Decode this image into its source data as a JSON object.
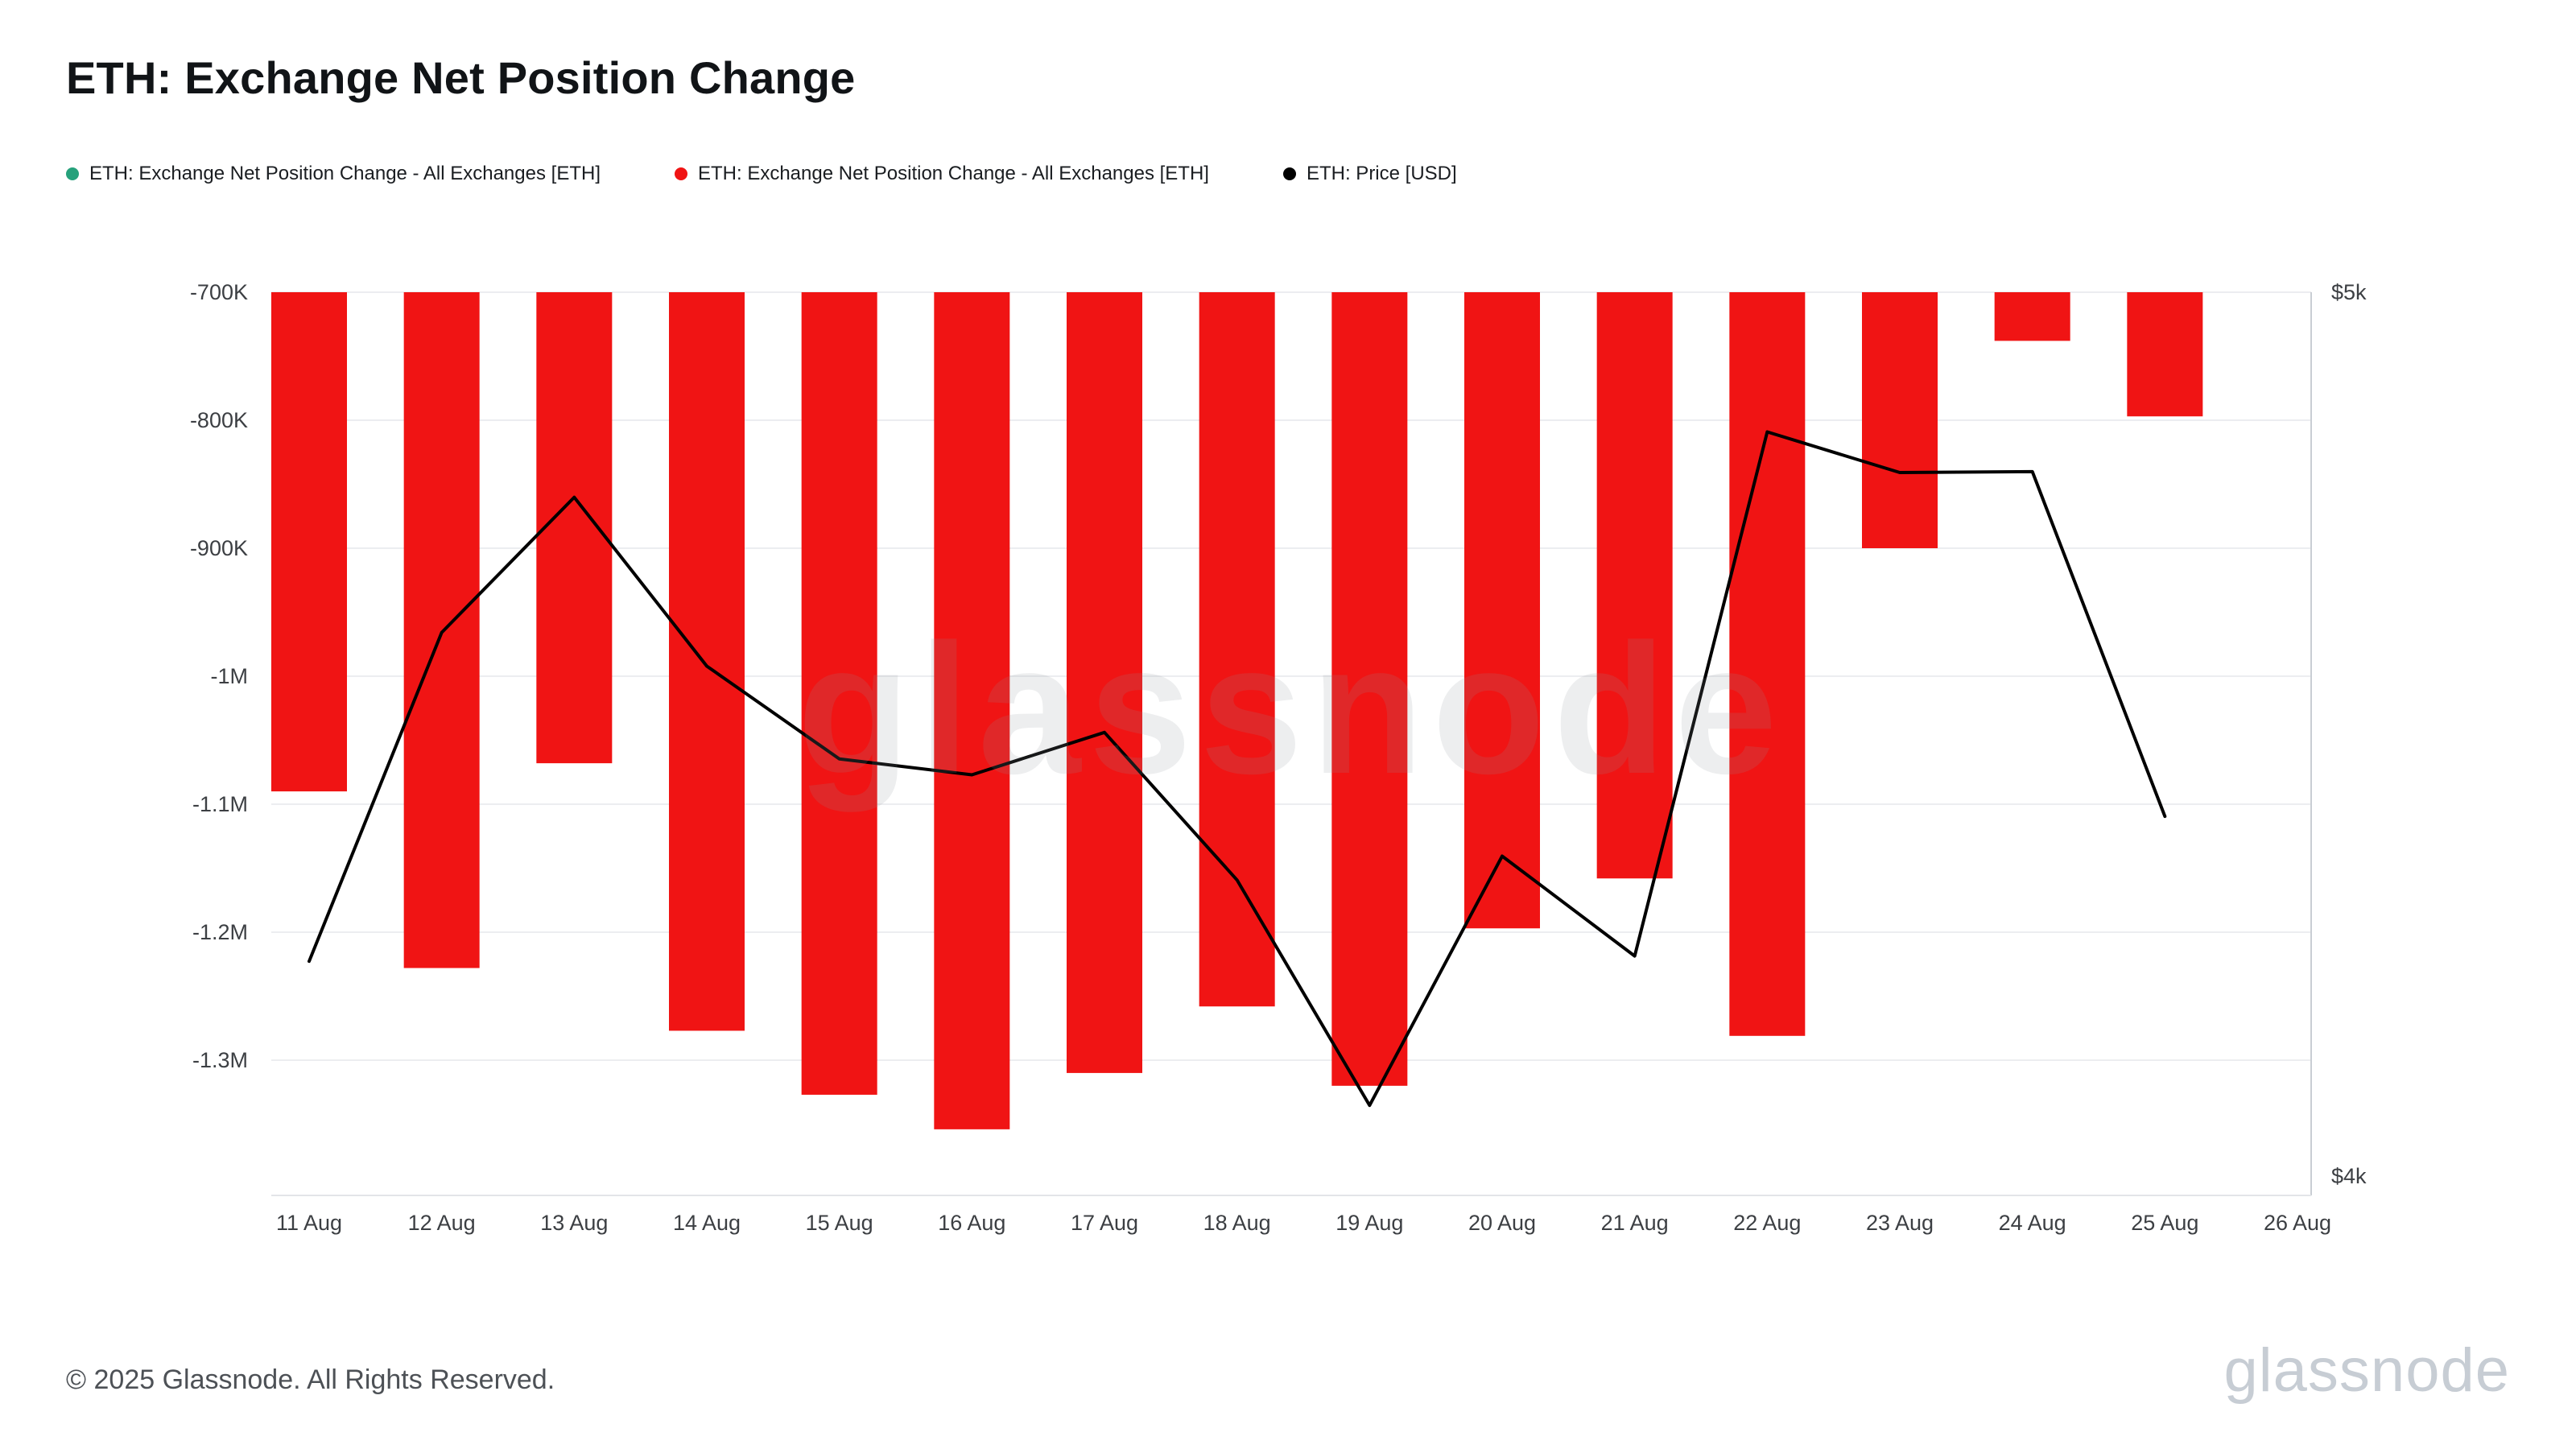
{
  "title": "ETH: Exchange Net Position Change",
  "legend": {
    "items": [
      {
        "label": "ETH: Exchange Net Position Change - All Exchanges [ETH]",
        "color": "#26a17b"
      },
      {
        "label": "ETH: Exchange Net Position Change - All Exchanges [ETH]",
        "color": "#f01414"
      },
      {
        "label": "ETH: Price [USD]",
        "color": "#000000"
      }
    ]
  },
  "watermark": "glassnode",
  "footer": {
    "copyright": "© 2025 Glassnode. All Rights Reserved.",
    "logo": "glassnode"
  },
  "chart_data": {
    "type": "bar",
    "title": "ETH: Exchange Net Position Change",
    "categories": [
      "11 Aug",
      "12 Aug",
      "13 Aug",
      "14 Aug",
      "15 Aug",
      "16 Aug",
      "17 Aug",
      "18 Aug",
      "19 Aug",
      "20 Aug",
      "21 Aug",
      "22 Aug",
      "23 Aug",
      "24 Aug",
      "25 Aug"
    ],
    "x_axis_ticks": [
      "11 Aug",
      "12 Aug",
      "13 Aug",
      "14 Aug",
      "15 Aug",
      "16 Aug",
      "17 Aug",
      "18 Aug",
      "19 Aug",
      "20 Aug",
      "21 Aug",
      "22 Aug",
      "23 Aug",
      "24 Aug",
      "25 Aug",
      "26 Aug"
    ],
    "series": [
      {
        "name": "ETH: Exchange Net Position Change - All Exchanges [ETH]",
        "type": "bar",
        "axis": "left",
        "color": "#f01414",
        "values": [
          -1090000,
          -1228000,
          -1068000,
          -1277000,
          -1327000,
          -1354000,
          -1310000,
          -1258000,
          -1320000,
          -1197000,
          -1158000,
          -1281000,
          -900000,
          -738000,
          -797000
        ]
      },
      {
        "name": "ETH: Price [USD]",
        "type": "line",
        "axis": "right",
        "color": "#000000",
        "values": [
          4243,
          4615,
          4768,
          4577,
          4472,
          4454,
          4502,
          4335,
          4080,
          4362,
          4249,
          4842,
          4796,
          4797,
          4407
        ]
      }
    ],
    "left_axis": {
      "ticks": [
        {
          "label": "-700K",
          "value": -700000
        },
        {
          "label": "-800K",
          "value": -800000
        },
        {
          "label": "-900K",
          "value": -900000
        },
        {
          "label": "-1M",
          "value": -1000000
        },
        {
          "label": "-1.1M",
          "value": -1100000
        },
        {
          "label": "-1.2M",
          "value": -1200000
        },
        {
          "label": "-1.3M",
          "value": -1300000
        }
      ],
      "range": [
        -700000,
        -1400000
      ]
    },
    "right_axis": {
      "ticks": [
        {
          "label": "$5k",
          "value": 5000
        },
        {
          "label": "$4k",
          "value": 4000
        }
      ],
      "range": [
        4000,
        5000
      ]
    },
    "grid": true,
    "legend_position": "top"
  }
}
